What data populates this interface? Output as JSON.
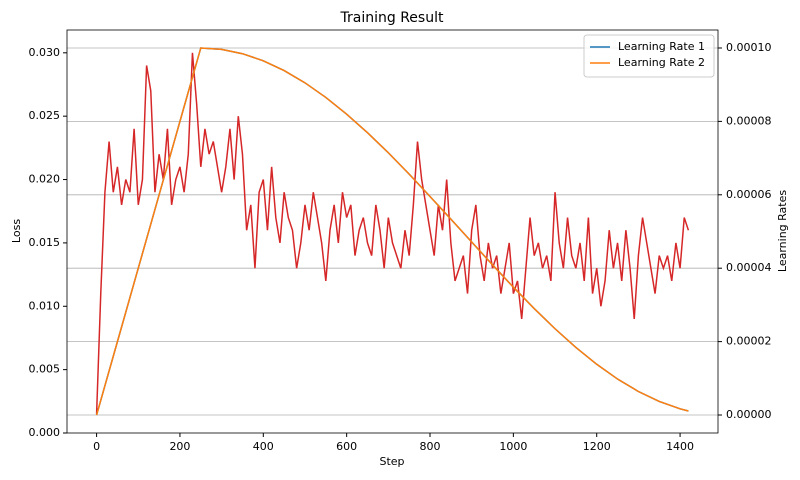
{
  "chart_data": {
    "type": "line",
    "title": "Training Result",
    "xlabel": "Step",
    "ylabel": "Loss",
    "y2label": "Learning Rates",
    "xlim": [
      -71,
      1491
    ],
    "xticks": [
      0,
      200,
      400,
      600,
      800,
      1000,
      1200,
      1400
    ],
    "ylim": [
      0,
      0.0318
    ],
    "yticks": [
      {
        "value": 0,
        "label": "0.000"
      },
      {
        "value": 0.005,
        "label": "0.005"
      },
      {
        "value": 0.01,
        "label": "0.010"
      },
      {
        "value": 0.015,
        "label": "0.015"
      },
      {
        "value": 0.02,
        "label": "0.020"
      },
      {
        "value": 0.025,
        "label": "0.025"
      },
      {
        "value": 0.03,
        "label": "0.030"
      }
    ],
    "y2lim": [
      -4.9e-06,
      0.0001049
    ],
    "y2ticks": [
      {
        "value": 0,
        "label": "0.00000"
      },
      {
        "value": 2e-05,
        "label": "0.00002"
      },
      {
        "value": 4e-05,
        "label": "0.00004"
      },
      {
        "value": 6e-05,
        "label": "0.00006"
      },
      {
        "value": 8e-05,
        "label": "0.00008"
      },
      {
        "value": 0.0001,
        "label": "0.00010"
      }
    ],
    "ycolor": "#d62728",
    "y2color": "#1f77b4",
    "grid": "y2",
    "legend": "upper right",
    "series": [
      {
        "color": "#d62728",
        "axis": "y",
        "x": [
          0,
          10,
          20,
          30,
          40,
          50,
          60,
          70,
          80,
          90,
          100,
          110,
          120,
          130,
          140,
          150,
          160,
          170,
          180,
          190,
          200,
          210,
          220,
          230,
          240,
          250,
          260,
          270,
          280,
          290,
          300,
          310,
          320,
          330,
          340,
          350,
          360,
          370,
          380,
          390,
          400,
          410,
          420,
          430,
          440,
          450,
          460,
          470,
          480,
          490,
          500,
          510,
          520,
          530,
          540,
          550,
          560,
          570,
          580,
          590,
          600,
          610,
          620,
          630,
          640,
          650,
          660,
          670,
          680,
          690,
          700,
          710,
          720,
          730,
          740,
          750,
          760,
          770,
          780,
          790,
          800,
          810,
          820,
          830,
          840,
          850,
          860,
          870,
          880,
          890,
          900,
          910,
          920,
          930,
          940,
          950,
          960,
          970,
          980,
          990,
          1000,
          1010,
          1020,
          1030,
          1040,
          1050,
          1060,
          1070,
          1080,
          1090,
          1100,
          1110,
          1120,
          1130,
          1140,
          1150,
          1160,
          1170,
          1180,
          1190,
          1200,
          1210,
          1220,
          1230,
          1240,
          1250,
          1260,
          1270,
          1280,
          1290,
          1300,
          1310,
          1320,
          1330,
          1340,
          1350,
          1360,
          1370,
          1380,
          1390,
          1400,
          1410,
          1420
        ],
        "values": [
          0.0015,
          0.011,
          0.019,
          0.023,
          0.019,
          0.021,
          0.018,
          0.02,
          0.019,
          0.024,
          0.018,
          0.02,
          0.029,
          0.027,
          0.019,
          0.022,
          0.02,
          0.024,
          0.018,
          0.02,
          0.021,
          0.019,
          0.022,
          0.03,
          0.026,
          0.021,
          0.024,
          0.022,
          0.023,
          0.021,
          0.019,
          0.021,
          0.024,
          0.02,
          0.025,
          0.022,
          0.016,
          0.018,
          0.013,
          0.019,
          0.02,
          0.016,
          0.021,
          0.017,
          0.015,
          0.019,
          0.017,
          0.016,
          0.013,
          0.015,
          0.018,
          0.016,
          0.019,
          0.017,
          0.015,
          0.012,
          0.016,
          0.018,
          0.015,
          0.019,
          0.017,
          0.018,
          0.014,
          0.016,
          0.017,
          0.015,
          0.014,
          0.018,
          0.016,
          0.013,
          0.017,
          0.015,
          0.014,
          0.013,
          0.016,
          0.014,
          0.018,
          0.023,
          0.02,
          0.018,
          0.016,
          0.014,
          0.018,
          0.016,
          0.02,
          0.015,
          0.012,
          0.013,
          0.014,
          0.011,
          0.016,
          0.018,
          0.014,
          0.012,
          0.015,
          0.013,
          0.014,
          0.011,
          0.013,
          0.015,
          0.011,
          0.012,
          0.009,
          0.013,
          0.017,
          0.014,
          0.015,
          0.013,
          0.014,
          0.012,
          0.019,
          0.015,
          0.013,
          0.017,
          0.014,
          0.013,
          0.015,
          0.012,
          0.017,
          0.011,
          0.013,
          0.01,
          0.012,
          0.016,
          0.013,
          0.015,
          0.012,
          0.016,
          0.013,
          0.009,
          0.014,
          0.017,
          0.015,
          0.013,
          0.011,
          0.014,
          0.013,
          0.014,
          0.012,
          0.015,
          0.013,
          0.017,
          0.016
        ]
      },
      {
        "name": "Learning Rate 1",
        "color": "#1f77b4",
        "axis": "y2",
        "x": [
          0,
          50,
          100,
          150,
          200,
          250,
          300,
          350,
          400,
          450,
          500,
          550,
          600,
          650,
          700,
          750,
          800,
          850,
          900,
          950,
          1000,
          1050,
          1100,
          1150,
          1200,
          1250,
          1300,
          1350,
          1400,
          1420
        ],
        "values": [
          0,
          2e-05,
          4e-05,
          6e-05,
          8e-05,
          0.0001,
          9.961e-05,
          9.844e-05,
          9.651e-05,
          9.385e-05,
          9.051e-05,
          8.653e-05,
          8.197e-05,
          7.691e-05,
          7.145e-05,
          6.564e-05,
          5.955e-05,
          5.338e-05,
          4.713e-05,
          4.091e-05,
          3.483e-05,
          2.901e-05,
          2.35e-05,
          1.841e-05,
          1.382e-05,
          9.8e-06,
          6.41e-06,
          3.71e-06,
          1.69e-06,
          1.1e-06
        ]
      },
      {
        "name": "Learning Rate 2",
        "color": "#ff7f0e",
        "axis": "y2",
        "x": [
          0,
          50,
          100,
          150,
          200,
          250,
          300,
          350,
          400,
          450,
          500,
          550,
          600,
          650,
          700,
          750,
          800,
          850,
          900,
          950,
          1000,
          1050,
          1100,
          1150,
          1200,
          1250,
          1300,
          1350,
          1400,
          1420
        ],
        "values": [
          0,
          2e-05,
          4e-05,
          6e-05,
          8e-05,
          0.0001,
          9.961e-05,
          9.844e-05,
          9.651e-05,
          9.385e-05,
          9.051e-05,
          8.653e-05,
          8.197e-05,
          7.691e-05,
          7.145e-05,
          6.564e-05,
          5.955e-05,
          5.338e-05,
          4.713e-05,
          4.091e-05,
          3.483e-05,
          2.901e-05,
          2.35e-05,
          1.841e-05,
          1.382e-05,
          9.8e-06,
          6.41e-06,
          3.71e-06,
          1.69e-06,
          1.1e-06
        ]
      }
    ]
  }
}
